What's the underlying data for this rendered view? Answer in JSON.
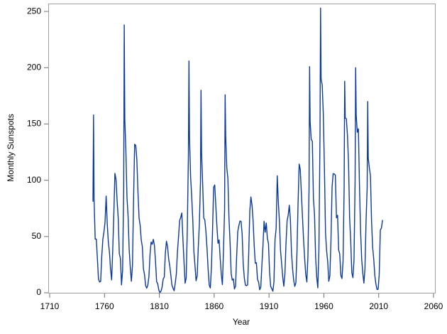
{
  "chart_data": {
    "type": "line",
    "x_label": "Year",
    "y_label": "Monthly Sunspots",
    "xlim": [
      1710,
      2060
    ],
    "xticks": [
      1710,
      1760,
      1810,
      1860,
      1910,
      1960,
      2010,
      2060
    ],
    "ylim": [
      0,
      257
    ],
    "yticks": [
      0,
      50,
      100,
      150,
      200,
      250
    ],
    "grid": false,
    "series": [
      {
        "name": "Monthly Sunspots",
        "color": "#0b3a9a",
        "x": [
          1749.5,
          1750,
          1750.5,
          1751.5,
          1752.5,
          1753.5,
          1754.5,
          1755.5,
          1756.5,
          1757.5,
          1758.5,
          1759.5,
          1760.5,
          1761.5,
          1762.5,
          1763.5,
          1764.5,
          1765.5,
          1766.5,
          1767.5,
          1768.5,
          1769.5,
          1770.5,
          1771.5,
          1772.5,
          1773.5,
          1774.5,
          1775.5,
          1776.5,
          1777.5,
          1778,
          1778.5,
          1779.5,
          1780.5,
          1781.5,
          1782.5,
          1783.5,
          1784.5,
          1785.5,
          1786.5,
          1787.5,
          1788.5,
          1789.5,
          1790.5,
          1791.5,
          1792.5,
          1793.5,
          1794.5,
          1795.5,
          1796.5,
          1797.5,
          1798.5,
          1799.5,
          1800.5,
          1801.5,
          1802.5,
          1803.5,
          1804.5,
          1805.5,
          1806.5,
          1807.5,
          1808.5,
          1809.5,
          1810.5,
          1811.5,
          1812.5,
          1813.5,
          1814.5,
          1815.5,
          1816.5,
          1817.5,
          1818.5,
          1819.5,
          1820.5,
          1821.5,
          1822.5,
          1823.5,
          1824.5,
          1825.5,
          1826.5,
          1827.5,
          1828.5,
          1829.5,
          1830.5,
          1831.5,
          1832.5,
          1833.5,
          1834.5,
          1835.5,
          1836.5,
          1837,
          1837.5,
          1838.5,
          1839.5,
          1840.5,
          1841.5,
          1842.5,
          1843.5,
          1844.5,
          1845.5,
          1846.5,
          1847.5,
          1848,
          1848.5,
          1849.5,
          1850.5,
          1851.5,
          1852.5,
          1853.5,
          1854.5,
          1855.5,
          1856.5,
          1857.5,
          1858.5,
          1859.5,
          1860.5,
          1861.5,
          1862.5,
          1863.5,
          1864.5,
          1865.5,
          1866.5,
          1867.5,
          1868.5,
          1869.5,
          1870,
          1870.5,
          1871.5,
          1872.5,
          1873.5,
          1874.5,
          1875.5,
          1876.5,
          1877.5,
          1878.5,
          1879.5,
          1880.5,
          1881.5,
          1882.5,
          1883.5,
          1884.5,
          1885.5,
          1886.5,
          1887.5,
          1888.5,
          1889.5,
          1890.5,
          1891.5,
          1892.5,
          1893.5,
          1894.5,
          1895.5,
          1896.5,
          1897.5,
          1898.5,
          1899.5,
          1900.5,
          1901.5,
          1902.5,
          1903.5,
          1904.5,
          1905.5,
          1906.5,
          1907.5,
          1908.5,
          1909.5,
          1910.5,
          1911.5,
          1912.5,
          1913.5,
          1914.5,
          1915.5,
          1916.5,
          1917.5,
          1918.5,
          1919.5,
          1920.5,
          1921.5,
          1922.5,
          1923.5,
          1924.5,
          1925.5,
          1926.5,
          1927.5,
          1928.5,
          1929.5,
          1930.5,
          1931.5,
          1932.5,
          1933.5,
          1934.5,
          1935.5,
          1936.5,
          1937.5,
          1938.5,
          1939.5,
          1940.5,
          1941.5,
          1942.5,
          1943.5,
          1944.5,
          1945.5,
          1946.5,
          1947,
          1947.5,
          1948.5,
          1949.5,
          1950.5,
          1951.5,
          1952.5,
          1953.5,
          1954.5,
          1955.5,
          1956.5,
          1957,
          1957.5,
          1958.5,
          1959.5,
          1960.5,
          1961.5,
          1962.5,
          1963.5,
          1964.5,
          1965.5,
          1966.5,
          1967.5,
          1968.5,
          1969.5,
          1970.5,
          1971.5,
          1972.5,
          1973.5,
          1974.5,
          1975.5,
          1976.5,
          1977.5,
          1978.5,
          1979,
          1979.5,
          1980.5,
          1981.5,
          1982.5,
          1983.5,
          1984.5,
          1985.5,
          1986.5,
          1987.5,
          1988.5,
          1989,
          1989.5,
          1990.5,
          1991.5,
          1992.5,
          1993.5,
          1994.5,
          1995.5,
          1996.5,
          1997.5,
          1998.5,
          1999.5,
          2000,
          2000.5,
          2001.5,
          2002.5,
          2003.5,
          2004.5,
          2005.5,
          2006.5,
          2007.5,
          2008.5,
          2009.5,
          2010.5,
          2011.5,
          2012.5,
          2013.5
        ],
        "values": [
          80.9,
          158,
          83.4,
          47.7,
          47.8,
          30.7,
          12.2,
          9.6,
          10.2,
          32.4,
          47.6,
          54.0,
          62.9,
          85.9,
          61.2,
          45.1,
          36.4,
          20.9,
          11.4,
          37.8,
          69.8,
          106.1,
          100.8,
          81.6,
          66.5,
          34.8,
          30.6,
          7.0,
          19.8,
          92.5,
          238,
          154.4,
          125.9,
          84.8,
          68.1,
          38.5,
          22.8,
          10.2,
          24.1,
          82.9,
          132.0,
          130.9,
          118.1,
          89.9,
          66.6,
          60.0,
          46.9,
          41.0,
          21.3,
          16.0,
          6.4,
          4.1,
          6.8,
          14.5,
          34.0,
          45.0,
          43.1,
          47.5,
          42.2,
          28.1,
          10.1,
          8.1,
          2.5,
          0.0,
          1.4,
          5.0,
          12.2,
          13.9,
          35.4,
          45.8,
          41.0,
          30.1,
          23.9,
          15.6,
          6.6,
          4.0,
          1.8,
          8.5,
          16.6,
          36.3,
          49.6,
          64.2,
          67.0,
          70.9,
          47.8,
          27.5,
          8.5,
          13.2,
          56.9,
          121.5,
          206,
          138.3,
          103.2,
          85.7,
          64.6,
          36.7,
          24.2,
          10.7,
          15.0,
          40.1,
          61.5,
          98.5,
          180,
          124.7,
          96.3,
          66.6,
          64.5,
          54.1,
          39.0,
          20.6,
          6.7,
          4.3,
          22.7,
          54.8,
          93.8,
          95.8,
          77.2,
          59.1,
          44.0,
          47.0,
          30.5,
          16.3,
          7.3,
          37.6,
          74.0,
          176,
          139.0,
          111.2,
          101.6,
          66.2,
          44.7,
          17.0,
          11.3,
          12.4,
          3.4,
          6.0,
          32.3,
          54.3,
          59.7,
          63.7,
          63.5,
          52.2,
          25.4,
          13.1,
          6.8,
          6.3,
          7.1,
          35.6,
          73.0,
          85.1,
          78.0,
          64.0,
          41.8,
          26.2,
          26.7,
          12.1,
          9.5,
          2.7,
          5.0,
          24.4,
          42.0,
          63.5,
          53.8,
          62.0,
          48.5,
          43.9,
          18.6,
          5.7,
          3.6,
          1.4,
          9.6,
          47.4,
          57.1,
          103.9,
          80.6,
          63.6,
          37.6,
          26.1,
          14.2,
          5.8,
          16.7,
          44.3,
          63.9,
          69.0,
          77.8,
          64.9,
          35.7,
          21.2,
          11.1,
          5.7,
          8.7,
          36.1,
          79.7,
          114.4,
          109.6,
          88.8,
          67.8,
          47.5,
          30.6,
          16.3,
          9.6,
          33.2,
          92.6,
          201,
          151.6,
          136.3,
          134.7,
          83.9,
          69.4,
          31.5,
          13.9,
          4.4,
          38.0,
          141.7,
          253,
          190.2,
          184.8,
          159.0,
          112.3,
          53.9,
          37.6,
          27.9,
          10.2,
          15.1,
          47.0,
          93.8,
          105.9,
          105.5,
          104.5,
          66.6,
          68.9,
          38.0,
          34.5,
          15.5,
          12.6,
          27.5,
          92.5,
          188,
          155.4,
          154.6,
          140.4,
          115.9,
          66.6,
          45.9,
          17.9,
          13.4,
          29.4,
          100.2,
          200,
          157.6,
          142.6,
          145.7,
          94.3,
          54.6,
          29.9,
          17.5,
          8.6,
          21.5,
          64.3,
          93.3,
          170,
          119.6,
          111.0,
          104.0,
          63.7,
          40.4,
          29.8,
          15.2,
          7.5,
          2.9,
          3.1,
          16.5,
          55.7,
          57.6,
          64.7
        ]
      }
    ]
  }
}
